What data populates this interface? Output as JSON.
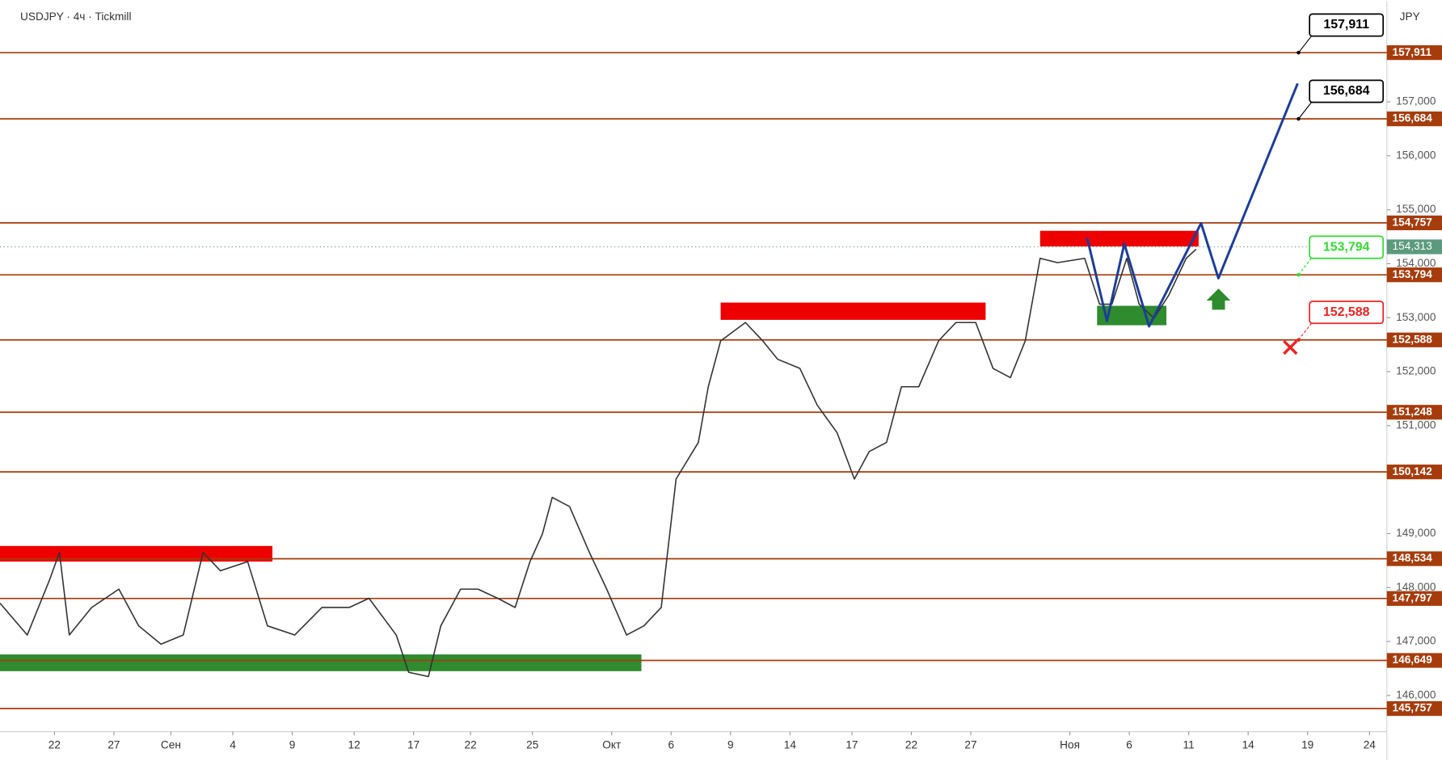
{
  "chart_data": {
    "type": "line",
    "title": "USDJPY · 4ч · Tickmill",
    "currency": "JPY",
    "xlim": [
      0,
      560
    ],
    "ylim": [
      145330,
      158870
    ],
    "xticks": [
      {
        "value": 22,
        "label": "22"
      },
      {
        "value": 46,
        "label": "27"
      },
      {
        "value": 69,
        "label": "Сен"
      },
      {
        "value": 94,
        "label": "4"
      },
      {
        "value": 118,
        "label": "9"
      },
      {
        "value": 143,
        "label": "12"
      },
      {
        "value": 167,
        "label": "17"
      },
      {
        "value": 190,
        "label": "22"
      },
      {
        "value": 215,
        "label": "25"
      },
      {
        "value": 247,
        "label": "Окт"
      },
      {
        "value": 271,
        "label": "6"
      },
      {
        "value": 295,
        "label": "9"
      },
      {
        "value": 319,
        "label": "14"
      },
      {
        "value": 344,
        "label": "17"
      },
      {
        "value": 368,
        "label": "22"
      },
      {
        "value": 392,
        "label": "27"
      },
      {
        "value": 432,
        "label": "Ноя"
      },
      {
        "value": 456,
        "label": "6"
      },
      {
        "value": 480,
        "label": "11"
      },
      {
        "value": 504,
        "label": "14"
      },
      {
        "value": 528,
        "label": "19"
      },
      {
        "value": 553,
        "label": "24"
      }
    ],
    "yticks": [
      {
        "value": 157000,
        "label": "157,000"
      },
      {
        "value": 156000,
        "label": "156,000"
      },
      {
        "value": 155000,
        "label": "155,000"
      },
      {
        "value": 154000,
        "label": "154,000"
      },
      {
        "value": 153000,
        "label": "153,000"
      },
      {
        "value": 152000,
        "label": "152,000"
      },
      {
        "value": 151000,
        "label": "151,000"
      },
      {
        "value": 149000,
        "label": "149,000"
      },
      {
        "value": 148000,
        "label": "148,000"
      },
      {
        "value": 147000,
        "label": "147,000"
      },
      {
        "value": 146000,
        "label": "146,000"
      }
    ],
    "level_color": "#a63c0c",
    "levels": [
      {
        "value": 157911,
        "label": "157,911"
      },
      {
        "value": 156684,
        "label": "156,684"
      },
      {
        "value": 154757,
        "label": "154,757"
      },
      {
        "value": 153794,
        "label": "153,794"
      },
      {
        "value": 152588,
        "label": "152,588"
      },
      {
        "value": 151248,
        "label": "151,248"
      },
      {
        "value": 150142,
        "label": "150,142"
      },
      {
        "value": 148534,
        "label": "148,534"
      },
      {
        "value": 147797,
        "label": "147,797"
      },
      {
        "value": 146649,
        "label": "146,649"
      },
      {
        "value": 145757,
        "label": "145,757"
      }
    ],
    "current_price": {
      "value": 154313,
      "label": "154,313",
      "color": "#5b9a7d"
    },
    "callouts": [
      {
        "value": 157911,
        "label": "157,911",
        "color": "#000000"
      },
      {
        "value": 156684,
        "label": "156,684",
        "color": "#000000"
      },
      {
        "value": 153794,
        "label": "153,794",
        "color": "#33dd33"
      },
      {
        "value": 152588,
        "label": "152,588",
        "color": "#ee2222"
      }
    ],
    "zones": [
      {
        "x1": 0,
        "x2": 110,
        "y1": 148480,
        "y2": 148770,
        "color": "#ee0000"
      },
      {
        "x1": 291,
        "x2": 398,
        "y1": 152960,
        "y2": 153280,
        "color": "#ee0000"
      },
      {
        "x1": 420,
        "x2": 484,
        "y1": 154320,
        "y2": 154610,
        "color": "#ee0000"
      },
      {
        "x1": 0,
        "x2": 259,
        "y1": 146450,
        "y2": 146760,
        "color": "#2e8b2e"
      },
      {
        "x1": 443,
        "x2": 471,
        "y1": 152860,
        "y2": 153220,
        "color": "#2e8b2e"
      }
    ],
    "series": [
      {
        "color": "#333333",
        "x": [
          0,
          11,
          20,
          24,
          28,
          37,
          48,
          56,
          65,
          74,
          82,
          89,
          100,
          108,
          119,
          130,
          141,
          149,
          160,
          165,
          173,
          178,
          186,
          193,
          201,
          208,
          214,
          219,
          223,
          230,
          238,
          245,
          253,
          260,
          267,
          273,
          282,
          286,
          291,
          301,
          308,
          314,
          323,
          330,
          338,
          345,
          351,
          358,
          364,
          371,
          379,
          386,
          394,
          401,
          408,
          414,
          420,
          427,
          438,
          444,
          449,
          455,
          460,
          466,
          472,
          479,
          483
        ],
        "values": [
          147710,
          147120,
          148140,
          148650,
          147120,
          147630,
          147970,
          147290,
          146950,
          147120,
          148650,
          148310,
          148480,
          147290,
          147120,
          147630,
          147630,
          147800,
          147120,
          146430,
          146350,
          147290,
          147970,
          147970,
          147800,
          147630,
          148480,
          148990,
          149670,
          149500,
          148650,
          147970,
          147120,
          147290,
          147630,
          150010,
          150690,
          151720,
          152570,
          152910,
          152570,
          152230,
          152060,
          151380,
          150870,
          150010,
          150520,
          150690,
          151720,
          151720,
          152570,
          152910,
          152910,
          152060,
          151890,
          152570,
          154100,
          154020,
          154100,
          153250,
          153250,
          154100,
          153250,
          152990,
          153420,
          154100,
          154270
        ]
      },
      {
        "color": "#1c3d9b",
        "x": [
          439,
          447,
          454,
          464,
          485,
          492,
          524
        ],
        "values": [
          154480,
          152940,
          154370,
          152840,
          154750,
          153730,
          157340
        ]
      }
    ]
  }
}
